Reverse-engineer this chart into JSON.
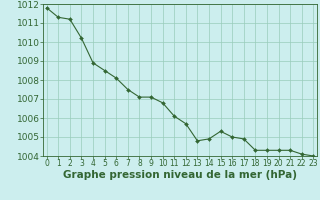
{
  "x": [
    0,
    1,
    2,
    3,
    4,
    5,
    6,
    7,
    8,
    9,
    10,
    11,
    12,
    13,
    14,
    15,
    16,
    17,
    18,
    19,
    20,
    21,
    22,
    23
  ],
  "y": [
    1011.8,
    1011.3,
    1011.2,
    1010.2,
    1008.9,
    1008.5,
    1008.1,
    1007.5,
    1007.1,
    1007.1,
    1006.8,
    1006.1,
    1005.7,
    1004.8,
    1004.9,
    1005.3,
    1005.0,
    1004.9,
    1004.3,
    1004.3,
    1004.3,
    1004.3,
    1004.1,
    1004.0
  ],
  "ylim": [
    1004,
    1012
  ],
  "xlim_left": -0.3,
  "xlim_right": 23.3,
  "yticks": [
    1004,
    1005,
    1006,
    1007,
    1008,
    1009,
    1010,
    1011,
    1012
  ],
  "xticks": [
    0,
    1,
    2,
    3,
    4,
    5,
    6,
    7,
    8,
    9,
    10,
    11,
    12,
    13,
    14,
    15,
    16,
    17,
    18,
    19,
    20,
    21,
    22,
    23
  ],
  "line_color": "#336633",
  "marker_color": "#336633",
  "bg_color": "#cceeee",
  "grid_color": "#99ccbb",
  "xlabel": "Graphe pression niveau de la mer (hPa)",
  "xlabel_color": "#336633",
  "tick_color": "#336633",
  "spine_color": "#336633",
  "xlabel_fontsize": 7.5,
  "ytick_fontsize": 6.5,
  "xtick_fontsize": 5.5
}
